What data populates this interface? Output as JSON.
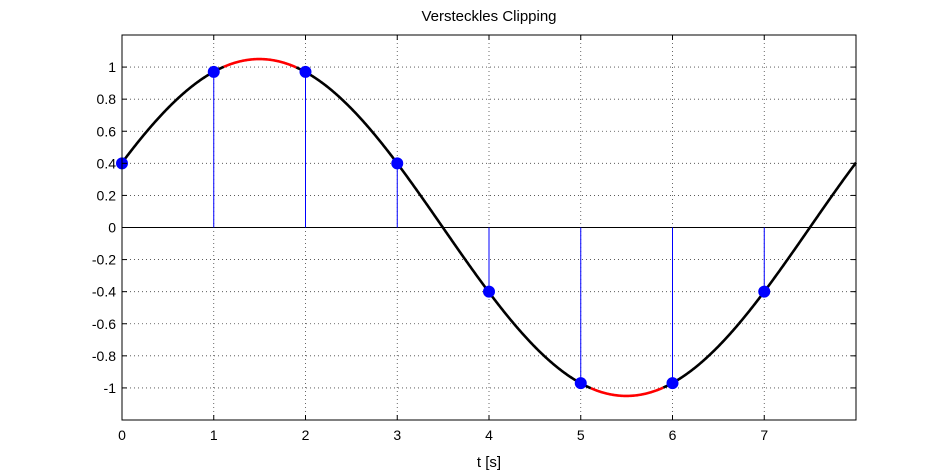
{
  "chart_data": {
    "type": "line",
    "title": "Versteckles Clipping",
    "xlabel": "t [s]",
    "ylabel": "",
    "xlim": [
      0,
      8
    ],
    "ylim": [
      -1.2,
      1.2
    ],
    "grid": true,
    "x_ticks": [
      0,
      1,
      2,
      3,
      4,
      5,
      6,
      7
    ],
    "x_tick_labels": [
      "0",
      "1",
      "2",
      "3",
      "4",
      "5",
      "6",
      "7"
    ],
    "y_ticks": [
      1,
      0.8,
      0.6,
      0.4,
      0.2,
      0,
      -0.2,
      -0.4,
      -0.6,
      -0.8,
      -1
    ],
    "y_tick_labels": [
      "1",
      "0.8",
      "0.6",
      "0.4",
      "0.2",
      "0",
      "-0.2",
      "-0.4",
      "-0.6",
      "-0.8",
      "-1"
    ],
    "series": [
      {
        "kind": "continuous-sine",
        "amplitude": 1.05,
        "period": 8,
        "phase": 0.3948,
        "color": "#000000",
        "clip_level": 1,
        "clip_color": "#ff0000"
      },
      {
        "kind": "samples-stem",
        "x": [
          0,
          1,
          2,
          3,
          4,
          5,
          6,
          7
        ],
        "y": [
          0.4,
          0.97,
          0.97,
          0.4,
          -0.4,
          -0.97,
          -0.97,
          -0.4
        ],
        "color": "#0000ff"
      }
    ]
  },
  "colors": {
    "curve": "#000000",
    "clipped": "#ff0000",
    "samples": "#0000ff",
    "grid": "#444444",
    "background": "#ffffff"
  }
}
